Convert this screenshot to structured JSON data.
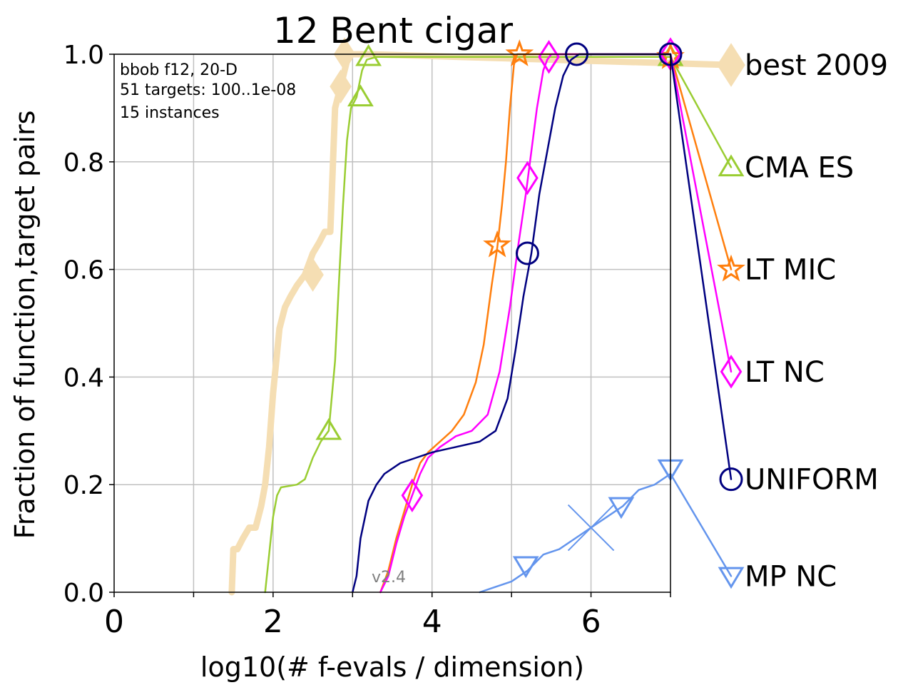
{
  "chart_data": {
    "type": "line",
    "title": "12 Bent cigar",
    "xlabel": "log10(# f-evals / dimension)",
    "ylabel": "Fraction of function,target pairs",
    "xlim": [
      0,
      7
    ],
    "ylim": [
      0,
      1
    ],
    "x_ticks": [
      "0",
      "2",
      "4",
      "6"
    ],
    "y_ticks": [
      "0.0",
      "0.2",
      "0.4",
      "0.6",
      "0.8",
      "1.0"
    ],
    "grid": true,
    "legend_placement": "right, outside plot",
    "info_lines": [
      "bbob f12, 20-D",
      "51 targets: 100..1e-08",
      "15 instances"
    ],
    "version": "v2.4",
    "series": [
      {
        "name": "best 2009",
        "color": "#f5deb3",
        "marker": "diamond",
        "width": 9,
        "x": [
          1.48,
          1.5,
          1.55,
          1.62,
          1.7,
          1.78,
          1.85,
          1.9,
          1.95,
          2.0,
          2.08,
          2.15,
          2.22,
          2.3,
          2.4,
          2.5,
          2.58,
          2.65,
          2.72,
          2.78,
          2.85,
          2.9,
          2.95,
          3.05,
          3.2
        ],
        "y": [
          0.0,
          0.08,
          0.08,
          0.1,
          0.12,
          0.12,
          0.16,
          0.2,
          0.27,
          0.37,
          0.49,
          0.53,
          0.55,
          0.57,
          0.59,
          0.63,
          0.65,
          0.67,
          0.67,
          0.9,
          0.94,
          0.97,
          1.0,
          1.0,
          1.0
        ],
        "marker_points": [
          [
            2.5,
            0.59
          ],
          [
            2.85,
            0.94
          ],
          [
            2.9,
            1.0
          ]
        ],
        "legend_y": 0.98
      },
      {
        "name": "CMA ES",
        "color": "#9acd32",
        "marker": "triangle-up",
        "width": 2.5,
        "x": [
          1.9,
          1.95,
          2.0,
          2.05,
          2.1,
          2.3,
          2.4,
          2.5,
          2.6,
          2.7,
          2.78,
          2.83,
          2.88,
          2.93,
          2.98,
          3.05,
          3.12,
          3.18,
          3.3,
          7.0
        ],
        "y": [
          0.0,
          0.07,
          0.14,
          0.18,
          0.195,
          0.2,
          0.21,
          0.25,
          0.28,
          0.3,
          0.43,
          0.58,
          0.72,
          0.84,
          0.9,
          0.92,
          0.97,
          0.99,
          0.995,
          0.995
        ],
        "marker_points": [
          [
            2.7,
            0.3
          ],
          [
            3.1,
            0.92
          ],
          [
            3.2,
            0.995
          ],
          [
            7.0,
            0.995
          ]
        ],
        "legend_y": 0.79
      },
      {
        "name": "LT MIC",
        "color": "#ff7f0e",
        "marker": "star",
        "width": 2.5,
        "x": [
          3.35,
          3.45,
          3.55,
          3.65,
          3.75,
          3.85,
          3.95,
          4.1,
          4.25,
          4.4,
          4.55,
          4.65,
          4.75,
          4.82,
          4.88,
          4.93,
          4.98,
          5.03,
          5.07,
          5.12,
          7.0
        ],
        "y": [
          0.0,
          0.04,
          0.1,
          0.15,
          0.2,
          0.24,
          0.26,
          0.28,
          0.3,
          0.33,
          0.39,
          0.46,
          0.57,
          0.64,
          0.72,
          0.8,
          0.9,
          0.98,
          1.0,
          1.0,
          1.0
        ],
        "marker_points": [
          [
            4.82,
            0.645
          ],
          [
            5.1,
            1.0
          ],
          [
            7.0,
            0.995
          ]
        ],
        "legend_y": 0.6
      },
      {
        "name": "LT NC",
        "color": "#ff00ff",
        "marker": "diamond",
        "width": 2.5,
        "x": [
          3.35,
          3.45,
          3.55,
          3.65,
          3.75,
          3.85,
          3.95,
          4.1,
          4.3,
          4.5,
          4.7,
          4.85,
          4.98,
          5.08,
          5.18,
          5.25,
          5.32,
          5.4,
          5.45,
          5.5,
          7.0
        ],
        "y": [
          0.0,
          0.03,
          0.09,
          0.14,
          0.18,
          0.22,
          0.25,
          0.27,
          0.29,
          0.3,
          0.33,
          0.41,
          0.53,
          0.64,
          0.74,
          0.82,
          0.9,
          0.97,
          0.99,
          1.0,
          1.0
        ],
        "marker_points": [
          [
            3.75,
            0.18
          ],
          [
            5.2,
            0.77
          ],
          [
            5.47,
            0.995
          ],
          [
            7.0,
            1.0
          ]
        ],
        "legend_y": 0.41
      },
      {
        "name": "UNIFORM",
        "color": "#000080",
        "marker": "circle",
        "width": 2.5,
        "x": [
          3.0,
          3.05,
          3.1,
          3.2,
          3.3,
          3.4,
          3.6,
          3.8,
          4.0,
          4.3,
          4.6,
          4.8,
          4.95,
          5.05,
          5.15,
          5.25,
          5.35,
          5.45,
          5.55,
          5.65,
          5.75,
          5.85,
          7.0
        ],
        "y": [
          0.0,
          0.03,
          0.1,
          0.17,
          0.2,
          0.22,
          0.24,
          0.25,
          0.26,
          0.27,
          0.28,
          0.3,
          0.36,
          0.45,
          0.55,
          0.63,
          0.74,
          0.82,
          0.9,
          0.96,
          0.99,
          1.0,
          1.0
        ],
        "marker_points": [
          [
            5.82,
            1.0
          ],
          [
            5.2,
            0.63
          ],
          [
            7.0,
            1.0
          ]
        ],
        "legend_y": 0.21
      },
      {
        "name": "MP NC",
        "color": "#6495ed",
        "marker": "triangle-down",
        "width": 2.5,
        "x": [
          4.6,
          4.8,
          5.0,
          5.2,
          5.4,
          5.6,
          5.8,
          6.0,
          6.2,
          6.4,
          6.6,
          6.8,
          7.0
        ],
        "y": [
          0.0,
          0.01,
          0.02,
          0.04,
          0.07,
          0.08,
          0.1,
          0.12,
          0.14,
          0.16,
          0.19,
          0.2,
          0.22
        ],
        "marker_points": [
          [
            5.18,
            0.05
          ],
          [
            6.38,
            0.16
          ],
          [
            7.0,
            0.23
          ]
        ],
        "cross_point": [
          6.0,
          0.12
        ],
        "legend_y": 0.03
      }
    ]
  }
}
